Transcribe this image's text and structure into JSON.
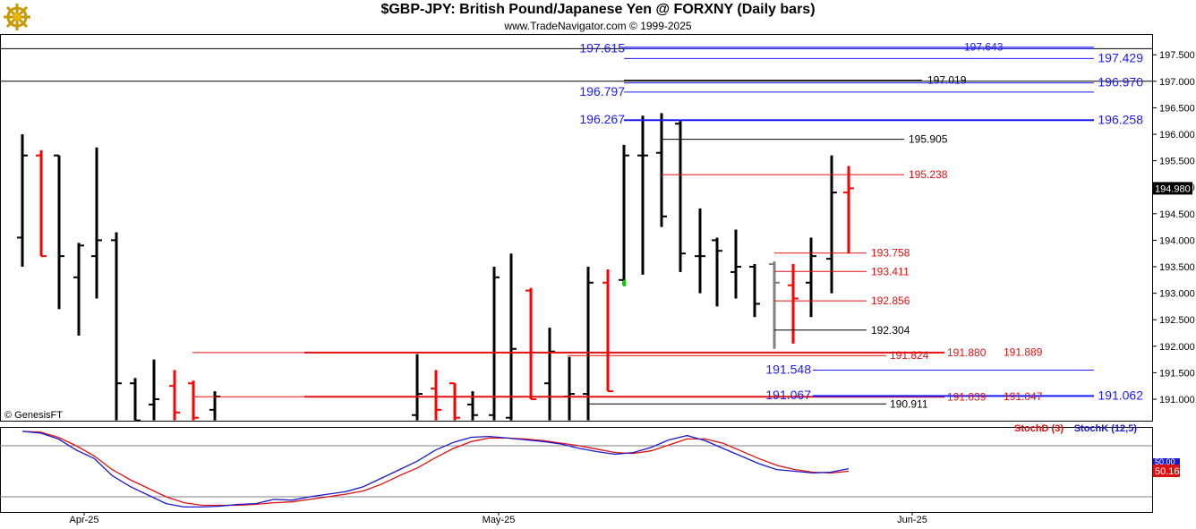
{
  "header": {
    "title": "$GBP-JPY:  British Pound/Japanese Yen @ FORXNY  (Daily bars)",
    "subtitle": "www.TradeNavigator.com © 1999-2025",
    "logo_icon": "ship-wheel-icon"
  },
  "colors": {
    "up_bar": "#000000",
    "down_bar": "#ff0000",
    "level_blue": "#1a1aff",
    "level_red": "#e01010",
    "stoch_d": "#e01010",
    "stoch_k": "#1a1acc",
    "price_badge_bg": "#000000",
    "stoch_badge_bg": "#e01010"
  },
  "chart_data": {
    "type": "ohlc",
    "symbol": "$GBP-JPY",
    "y_ticks": [
      "191.000",
      "191.500",
      "192.000",
      "192.500",
      "193.000",
      "193.500",
      "194.000",
      "194.500",
      "195.000",
      "195.500",
      "196.000",
      "196.500",
      "197.000",
      "197.500"
    ],
    "ylim": [
      190.6,
      197.9
    ],
    "x_labels": [
      "Apr-25",
      "May-25",
      "Jun-25"
    ],
    "last_price": "194.980",
    "copyright": "© GenesisFT",
    "bars": [
      {
        "o": 194.05,
        "h": 196.0,
        "l": 193.5,
        "c": 195.6,
        "col": "black"
      },
      {
        "o": 195.6,
        "h": 195.7,
        "l": 193.7,
        "c": 193.7,
        "col": "red"
      },
      {
        "o": 195.6,
        "h": 195.6,
        "l": 192.7,
        "c": 193.7,
        "col": "black"
      },
      {
        "o": 193.3,
        "h": 193.95,
        "l": 192.2,
        "c": 193.9,
        "col": "black"
      },
      {
        "o": 193.7,
        "h": 195.75,
        "l": 192.9,
        "c": 194.0,
        "col": "black"
      },
      {
        "o": 194.0,
        "h": 194.15,
        "l": 190.6,
        "c": 191.3,
        "col": "black"
      },
      {
        "o": 191.3,
        "h": 191.4,
        "l": 190.6,
        "c": 190.6,
        "col": "black"
      },
      {
        "o": 190.9,
        "h": 191.75,
        "l": 190.6,
        "c": 191.0,
        "col": "black"
      },
      {
        "o": 191.25,
        "h": 191.55,
        "l": 190.6,
        "c": 190.75,
        "col": "red"
      },
      {
        "o": 191.3,
        "h": 191.35,
        "l": 190.6,
        "c": 190.65,
        "col": "red"
      },
      {
        "o": 190.8,
        "h": 191.15,
        "l": 190.6,
        "c": 191.05,
        "col": "black"
      },
      {
        "o": 190.7,
        "h": 193.5,
        "l": 190.6,
        "c": 193.3,
        "col": "black"
      },
      {
        "o": 190.65,
        "h": 193.75,
        "l": 190.6,
        "c": 191.95,
        "col": "black"
      },
      {
        "o": 193.05,
        "h": 193.1,
        "l": 191.0,
        "c": 191.0,
        "col": "red"
      },
      {
        "o": 191.3,
        "h": 192.35,
        "l": 190.6,
        "c": 191.9,
        "col": "black"
      },
      {
        "o": 191.05,
        "h": 191.8,
        "l": 190.6,
        "c": 191.1,
        "col": "black"
      },
      {
        "o": 191.1,
        "h": 193.5,
        "l": 190.6,
        "c": 193.2,
        "col": "black"
      },
      {
        "o": 193.2,
        "h": 193.45,
        "l": 191.15,
        "c": 191.15,
        "col": "red"
      },
      {
        "o": 193.25,
        "h": 195.8,
        "l": 193.15,
        "c": 195.6,
        "col": "black"
      },
      {
        "o": 195.6,
        "h": 196.35,
        "l": 193.35,
        "c": 195.6,
        "col": "black"
      },
      {
        "o": 195.65,
        "h": 196.4,
        "l": 194.25,
        "c": 194.45,
        "col": "black"
      },
      {
        "o": 196.2,
        "h": 196.25,
        "l": 193.4,
        "c": 193.75,
        "col": "black"
      },
      {
        "o": 193.7,
        "h": 194.6,
        "l": 193.0,
        "c": 193.7,
        "col": "black"
      },
      {
        "o": 194.0,
        "h": 194.05,
        "l": 192.75,
        "c": 193.8,
        "col": "black"
      },
      {
        "o": 193.4,
        "h": 194.2,
        "l": 192.9,
        "c": 193.5,
        "col": "black"
      },
      {
        "o": 193.5,
        "h": 193.55,
        "l": 192.55,
        "c": 192.8,
        "col": "black"
      },
      {
        "o": 193.55,
        "h": 193.6,
        "l": 191.95,
        "c": 193.2,
        "col": "grey"
      },
      {
        "o": 193.15,
        "h": 193.55,
        "l": 192.05,
        "c": 192.9,
        "col": "red"
      },
      {
        "o": 193.2,
        "h": 194.05,
        "l": 192.55,
        "c": 193.7,
        "col": "black"
      },
      {
        "o": 193.65,
        "h": 195.6,
        "l": 193.0,
        "c": 194.9,
        "col": "black"
      },
      {
        "o": 194.9,
        "h": 195.4,
        "l": 193.75,
        "c": 194.98,
        "col": "red"
      }
    ],
    "levels": [
      {
        "label": "197.615",
        "value": 197.615,
        "color": "blue",
        "style": "left"
      },
      {
        "label": "197.643",
        "value": 197.643,
        "color": "blue",
        "style": "inline"
      },
      {
        "label": "197.429",
        "value": 197.429,
        "color": "blue",
        "style": "right"
      },
      {
        "label": "197.019",
        "value": 197.019,
        "color": "black",
        "style": "inline"
      },
      {
        "label": "196.970",
        "value": 196.97,
        "color": "blue",
        "style": "right"
      },
      {
        "label": "196.797",
        "value": 196.797,
        "color": "blue",
        "style": "left"
      },
      {
        "label": "196.267",
        "value": 196.267,
        "color": "blue",
        "style": "left"
      },
      {
        "label": "196.258",
        "value": 196.258,
        "color": "blue",
        "style": "right"
      },
      {
        "label": "195.905",
        "value": 195.905,
        "color": "black",
        "style": "inline"
      },
      {
        "label": "195.238",
        "value": 195.238,
        "color": "red",
        "style": "inline"
      },
      {
        "label": "193.758",
        "value": 193.758,
        "color": "red",
        "style": "inline"
      },
      {
        "label": "193.411",
        "value": 193.411,
        "color": "red",
        "style": "inline"
      },
      {
        "label": "192.856",
        "value": 192.856,
        "color": "red",
        "style": "inline"
      },
      {
        "label": "192.304",
        "value": 192.304,
        "color": "black",
        "style": "inline"
      },
      {
        "label": "191.880",
        "value": 191.88,
        "color": "red",
        "style": "inline"
      },
      {
        "label": "191.889",
        "value": 191.889,
        "color": "red",
        "style": "inline"
      },
      {
        "label": "191.824",
        "value": 191.824,
        "color": "red",
        "style": "inline"
      },
      {
        "label": "191.548",
        "value": 191.548,
        "color": "blue",
        "style": "inline"
      },
      {
        "label": "191.067",
        "value": 191.067,
        "color": "blue",
        "style": "inline"
      },
      {
        "label": "191.039",
        "value": 191.039,
        "color": "red",
        "style": "inline"
      },
      {
        "label": "191.047",
        "value": 191.047,
        "color": "red",
        "style": "inline"
      },
      {
        "label": "191.062",
        "value": 191.062,
        "color": "blue",
        "style": "right"
      },
      {
        "label": "190.911",
        "value": 190.911,
        "color": "black",
        "style": "inline"
      }
    ],
    "stochastic": {
      "legend_d": "StochD (3)",
      "legend_k": "StochK (12,5)",
      "badge_top": "50.00",
      "badge_value": "50.16",
      "k_values": [
        97,
        95,
        88,
        75,
        65,
        45,
        32,
        22,
        12,
        8,
        8,
        9,
        11,
        12,
        17,
        16,
        20,
        23,
        26,
        32,
        42,
        52,
        62,
        75,
        84,
        90,
        91,
        89,
        87,
        85,
        82,
        77,
        73,
        70,
        72,
        78,
        87,
        92,
        86,
        77,
        68,
        59,
        52,
        50,
        48,
        49,
        53
      ],
      "d_values": [
        97,
        96,
        90,
        80,
        68,
        52,
        40,
        30,
        20,
        13,
        10,
        10,
        10,
        11,
        13,
        14,
        17,
        20,
        23,
        27,
        35,
        45,
        54,
        66,
        77,
        85,
        89,
        89,
        88,
        86,
        83,
        80,
        76,
        72,
        71,
        74,
        81,
        88,
        88,
        83,
        74,
        65,
        57,
        52,
        49,
        48,
        50
      ]
    }
  }
}
